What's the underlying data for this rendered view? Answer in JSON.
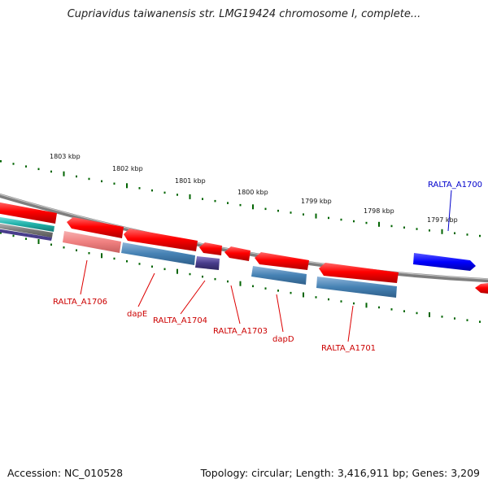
{
  "title": "Cupriavidus taiwanensis str. LMG19424 chromosome I, complete...",
  "ticks": [
    "1803 kbp",
    "1802 kbp",
    "1801 kbp",
    "1800 kbp",
    "1799 kbp",
    "1798 kbp",
    "1797 kbp"
  ],
  "genes": {
    "ralta_a1706": "RALTA_A1706",
    "dape": "dapE",
    "ralta_a1704": "RALTA_A1704",
    "ralta_a1703": "RALTA_A1703",
    "dapd": "dapD",
    "ralta_a1701": "RALTA_A1701",
    "ralta_a1700": "RALTA_A1700"
  },
  "footer": {
    "accession": "Accession: NC_010528",
    "summary": "Topology: circular; Length: 3,416,911 bp; Genes: 3,209"
  },
  "colors": {
    "cds_red": "#ff0000",
    "rna_blue": "#4682b4",
    "highlight_blue": "#0000ff",
    "tick_green": "#006400",
    "backbone": "#808080"
  }
}
